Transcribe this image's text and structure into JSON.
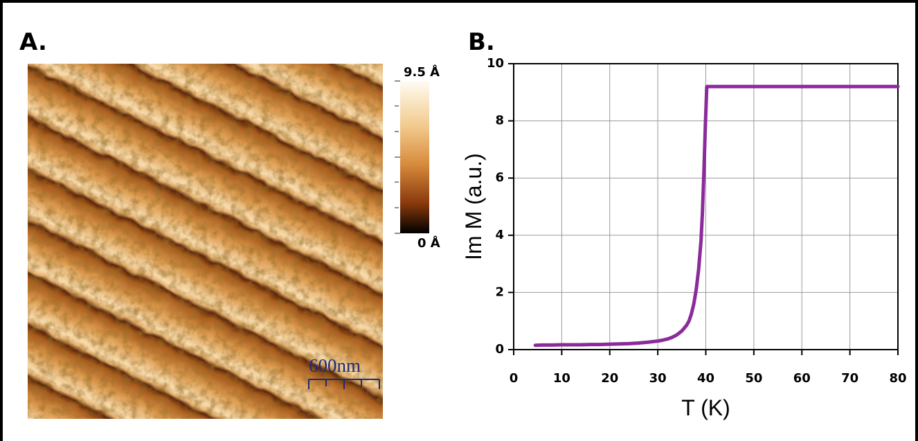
{
  "panels": [
    {
      "label": "A.",
      "colorbar": {
        "max_label": "9.5 Å",
        "min_label": "0 Å"
      },
      "scale_bar": "600nm"
    },
    {
      "label": "B."
    }
  ],
  "chart_data": {
    "type": "line",
    "x_label": "T (K)",
    "y_label": "Im M (a.u.)",
    "x": [
      4.5,
      6,
      8,
      10,
      12,
      14,
      16,
      18,
      20,
      22,
      24,
      26,
      28,
      30,
      31,
      32,
      33,
      34,
      35,
      36,
      36.5,
      37,
      37.5,
      38,
      38.5,
      39,
      39.3,
      39.6,
      39.9,
      40.2,
      41,
      45,
      50,
      55,
      60,
      65,
      70,
      75,
      80
    ],
    "series": [
      {
        "color": "#8b2a9b",
        "values": [
          0.15,
          0.16,
          0.16,
          0.17,
          0.17,
          0.17,
          0.18,
          0.18,
          0.19,
          0.2,
          0.21,
          0.23,
          0.26,
          0.3,
          0.33,
          0.37,
          0.43,
          0.52,
          0.65,
          0.85,
          1.0,
          1.25,
          1.6,
          2.1,
          2.8,
          3.8,
          4.8,
          6.2,
          7.8,
          9.2,
          9.2,
          9.2,
          9.2,
          9.2,
          9.2,
          9.2,
          9.2,
          9.2,
          9.2
        ]
      }
    ],
    "xlim": [
      0,
      80
    ],
    "ylim": [
      0,
      10
    ],
    "xticks": [
      0,
      10,
      20,
      30,
      40,
      50,
      60,
      70,
      80
    ],
    "yticks": [
      0,
      2,
      4,
      6,
      8,
      10
    ],
    "grid": true
  }
}
